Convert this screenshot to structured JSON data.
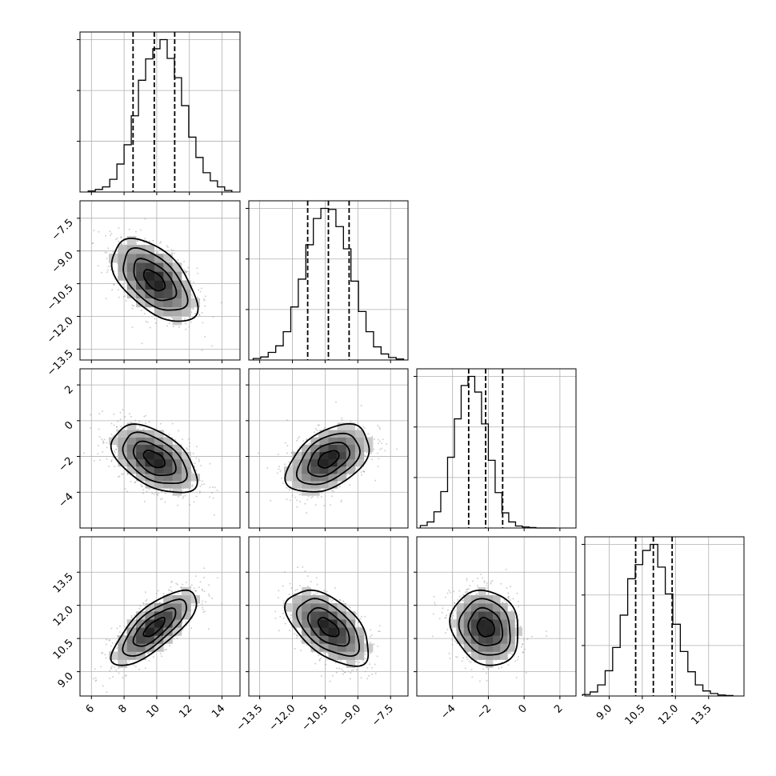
{
  "chart_data": {
    "type": "corner",
    "parameters": [
      {
        "index": 0,
        "range": [
          5.3,
          15.1
        ],
        "ticks": [
          6,
          8,
          10,
          12,
          14
        ],
        "tick_labels": [
          "6",
          "8",
          "10",
          "12",
          "14"
        ],
        "mean": 9.85,
        "std": 1.3,
        "quantiles": [
          8.55,
          9.85,
          11.1
        ]
      },
      {
        "index": 1,
        "range": [
          -14.0,
          -6.7
        ],
        "ticks": [
          -13.5,
          -12.0,
          -10.5,
          -9.0,
          -7.5
        ],
        "tick_labels": [
          "−13.5",
          "−12.0",
          "−10.5",
          "−9.0",
          "−7.5"
        ],
        "mean": -10.35,
        "std": 0.95,
        "quantiles": [
          -11.3,
          -10.35,
          -9.4
        ]
      },
      {
        "index": 2,
        "range": [
          -6.0,
          2.9
        ],
        "ticks": [
          -4,
          -2,
          0,
          2
        ],
        "tick_labels": [
          "−4",
          "−2",
          "0",
          "2"
        ],
        "mean": -2.15,
        "std": 0.95,
        "quantiles": [
          -3.1,
          -2.15,
          -1.2
        ]
      },
      {
        "index": 3,
        "range": [
          7.9,
          15.1
        ],
        "ticks": [
          9.0,
          10.5,
          12.0,
          13.5
        ],
        "tick_labels": [
          "9.0",
          "10.5",
          "12.0",
          "13.5"
        ],
        "mean": 11.0,
        "std": 0.85,
        "quantiles": [
          10.2,
          11.0,
          11.85
        ]
      }
    ],
    "histograms": [
      {
        "parameter": 0,
        "bins": 20,
        "range": [
          5.8,
          14.6
        ],
        "counts": [
          2,
          5,
          10,
          25,
          55,
          93,
          150,
          220,
          262,
          282,
          300,
          263,
          225,
          170,
          108,
          68,
          38,
          22,
          10,
          3
        ]
      },
      {
        "parameter": 1,
        "bins": 20,
        "range": [
          -13.8,
          -6.9
        ],
        "counts": [
          3,
          6,
          15,
          28,
          56,
          105,
          160,
          228,
          280,
          300,
          298,
          264,
          220,
          156,
          96,
          56,
          26,
          12,
          5,
          2
        ]
      },
      {
        "parameter": 2,
        "bins": 20,
        "range": [
          -5.8,
          1.8
        ],
        "counts": [
          5,
          12,
          32,
          72,
          140,
          216,
          282,
          300,
          269,
          206,
          134,
          70,
          30,
          12,
          4,
          2,
          1,
          0,
          0,
          0
        ]
      },
      {
        "parameter": 3,
        "bins": 20,
        "range": [
          7.8,
          14.6
        ],
        "counts": [
          3,
          8,
          22,
          50,
          96,
          160,
          232,
          260,
          288,
          300,
          255,
          202,
          142,
          88,
          48,
          22,
          10,
          5,
          2,
          1
        ]
      }
    ],
    "pairs": [
      {
        "x": 0,
        "y": 1,
        "correlation": -0.55
      },
      {
        "x": 0,
        "y": 2,
        "correlation": -0.5
      },
      {
        "x": 1,
        "y": 2,
        "correlation": 0.45
      },
      {
        "x": 0,
        "y": 3,
        "correlation": 0.75
      },
      {
        "x": 1,
        "y": 3,
        "correlation": -0.55
      },
      {
        "x": 2,
        "y": 3,
        "correlation": -0.15
      }
    ],
    "contour_levels_sigma": [
      0.5,
      1.0,
      1.5,
      2.0
    ],
    "grid": true
  }
}
